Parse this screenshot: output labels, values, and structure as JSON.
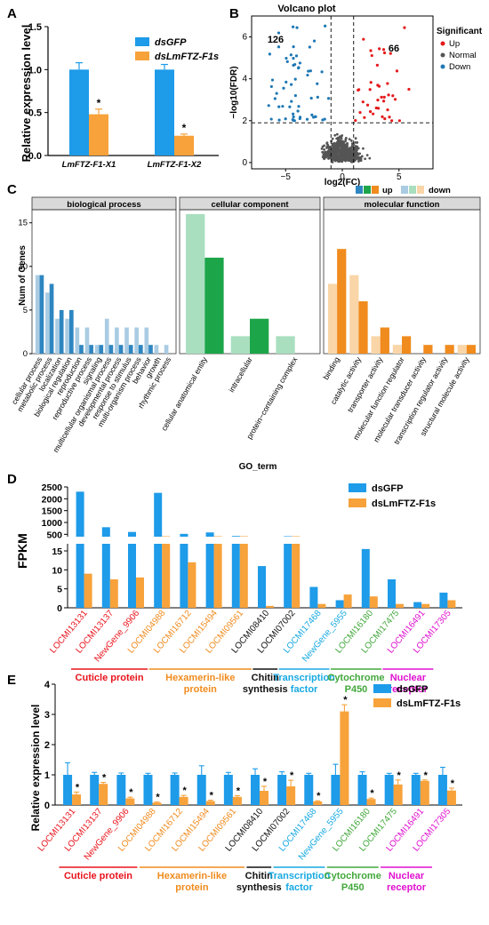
{
  "colors": {
    "blue": "#1E9BE9",
    "orange": "#F7A23B",
    "up": "#E41A1C",
    "normal": "#555555",
    "down": "#1F78B4",
    "bp_dark": "#2E86C1",
    "bp_light": "#A9CCE3",
    "cc_dark": "#1DA54A",
    "cc_light": "#A9DFBF",
    "mf_dark": "#F08B1E",
    "mf_light": "#F9D5A7",
    "red_label": "#E8141C",
    "orange_label": "#F08B1E",
    "black_label": "#111111",
    "cyan_label": "#17A9E1",
    "green_label": "#42A83B",
    "magenta_label": "#E010D0"
  },
  "panel_letters": {
    "a": "A",
    "b": "B",
    "c": "C",
    "d": "D",
    "e": "E"
  },
  "chart_data": [
    {
      "id": "A",
      "type": "bar",
      "ylabel": "Relative expression level",
      "ylim": [
        0,
        1.5
      ],
      "yticks": [
        "0.0",
        "0.5",
        "1.0",
        "1.5"
      ],
      "categories": [
        "LmFTZ-F1-X1",
        "LmFTZ-F1-X2"
      ],
      "series": [
        {
          "name": "dsGFP",
          "values": [
            1.0,
            1.0
          ],
          "errors": [
            0.08,
            0.06
          ]
        },
        {
          "name": "dsLmFTZ-F1s",
          "values": [
            0.48,
            0.23
          ],
          "errors": [
            0.06,
            0.02
          ]
        }
      ],
      "significance": [
        "*",
        "*"
      ],
      "legend": "top-right"
    },
    {
      "id": "B",
      "type": "scatter",
      "title": "Volcano plot",
      "xlabel": "log2(FC)",
      "ylabel": "−log10(FDR)",
      "xlim": [
        -8,
        8
      ],
      "ylim": [
        -0.3,
        7
      ],
      "xticks": [
        "−5",
        "0",
        "5"
      ],
      "yticks": [
        "0",
        "2",
        "4",
        "6"
      ],
      "counts": {
        "down": "126",
        "up": "66"
      },
      "legend_title": "Significant",
      "legend": [
        "Up",
        "Normal",
        "Down"
      ]
    },
    {
      "id": "C",
      "type": "bar",
      "xlabel": "GO_term",
      "ylabel": "Num of Genes",
      "ylim": [
        0,
        16.5
      ],
      "yticks": [
        "0",
        "5",
        "10",
        "15"
      ],
      "legend": {
        "up": "up",
        "down": "down"
      },
      "facets": [
        {
          "name": "biological process",
          "terms": [
            "cellular process",
            "metabolic process",
            "localization",
            "biological regulation",
            "reproduction",
            "reproductive process",
            "signaling",
            "multicellular organismal process",
            "developmental process",
            "response to stimulus",
            "multi-organism process",
            "behavior",
            "growth",
            "rhythmic process"
          ],
          "up": [
            9,
            8,
            5,
            5,
            1,
            1,
            1,
            1,
            1,
            1,
            1,
            1,
            0,
            0
          ],
          "down": [
            9,
            7,
            4,
            4,
            3,
            3,
            1,
            4,
            3,
            3,
            3,
            3,
            1,
            1
          ]
        },
        {
          "name": "cellular component",
          "terms": [
            "cellular anatomical entity",
            "intracellular",
            "protein−containing complex"
          ],
          "up": [
            11,
            4,
            0
          ],
          "down": [
            16,
            2,
            2
          ]
        },
        {
          "name": "molecular function",
          "terms": [
            "binding",
            "catalytic activity",
            "transporter activity",
            "molecular function regulator",
            "molecular transducer activity",
            "transcription regulator activity",
            "structural molecule activity"
          ],
          "up": [
            12,
            6,
            3,
            2,
            1,
            1,
            1
          ],
          "down": [
            8,
            9,
            2,
            1,
            0,
            0,
            1
          ]
        }
      ]
    },
    {
      "id": "D",
      "type": "bar",
      "ylabel": "FPKM",
      "upper_yticks": [
        "500",
        "1000",
        "1500",
        "2000",
        "2500"
      ],
      "lower_yticks": [
        "0",
        "5",
        "10",
        "15"
      ],
      "series_names": [
        "dsGFP",
        "dsLmFTZ-F1s"
      ],
      "genes": [
        {
          "id": "LOCMI13131",
          "gfp": 2300,
          "ftz": 9
        },
        {
          "id": "LOCMI13137",
          "gfp": 800,
          "ftz": 7.5
        },
        {
          "id": "NewGene_9906",
          "gfp": 600,
          "ftz": 8
        },
        {
          "id": "LOCMI04988",
          "gfp": 2250,
          "ftz": 280
        },
        {
          "id": "LOCMI16712",
          "gfp": 520,
          "ftz": 12
        },
        {
          "id": "LOCMI15494",
          "gfp": 580,
          "ftz": 20
        },
        {
          "id": "LOCMI09561",
          "gfp": 430,
          "ftz": 60
        },
        {
          "id": "LOCMI08410",
          "gfp": 11,
          "ftz": 0.5
        },
        {
          "id": "LOCMI07002",
          "gfp": 230,
          "ftz": 130
        },
        {
          "id": "LOCMI17468",
          "gfp": 5.5,
          "ftz": 1
        },
        {
          "id": "NewGene_5955",
          "gfp": 2,
          "ftz": 3.5
        },
        {
          "id": "LOCMI16180",
          "gfp": 15.5,
          "ftz": 3
        },
        {
          "id": "LOCMI17475",
          "gfp": 7.5,
          "ftz": 1
        },
        {
          "id": "LOCMI16491",
          "gfp": 1.5,
          "ftz": 1
        },
        {
          "id": "LOCMI17305",
          "gfp": 4,
          "ftz": 2
        }
      ],
      "gene_colors": [
        "red",
        "red",
        "red",
        "orange",
        "orange",
        "orange",
        "orange",
        "black",
        "black",
        "cyan",
        "cyan",
        "green",
        "green",
        "magenta",
        "magenta"
      ],
      "groups": [
        {
          "label_lines": [
            "Cuticle protein"
          ],
          "color": "red",
          "start": 0,
          "end": 3
        },
        {
          "label_lines": [
            "Hexamerin-like",
            "protein"
          ],
          "color": "orange",
          "start": 3,
          "end": 7
        },
        {
          "label_lines": [
            "Chitin",
            "synthesis"
          ],
          "color": "black",
          "start": 7,
          "end": 8
        },
        {
          "label_lines": [
            "Transcription",
            "factor"
          ],
          "color": "cyan",
          "start": 8,
          "end": 10
        },
        {
          "label_lines": [
            "Cytochrome",
            "P450"
          ],
          "color": "green",
          "start": 10,
          "end": 12
        },
        {
          "label_lines": [
            "Nuclear",
            "receptor"
          ],
          "color": "magenta",
          "start": 12,
          "end": 14
        }
      ]
    },
    {
      "id": "E",
      "type": "bar",
      "ylabel": "Relative expression level",
      "ylim": [
        0,
        4
      ],
      "yticks": [
        "0",
        "1",
        "2",
        "3",
        "4"
      ],
      "series_names": [
        "dsGFP",
        "dsLmFTZ-F1s"
      ],
      "gfp": [
        1.0,
        1.0,
        1.0,
        1.0,
        1.0,
        1.0,
        1.0,
        1.0,
        1.0,
        1.0,
        1.0,
        1.0,
        1.0,
        1.0,
        1.0
      ],
      "gfp_err": [
        0.4,
        0.08,
        0.06,
        0.05,
        0.06,
        0.3,
        0.08,
        0.2,
        0.1,
        0.05,
        0.35,
        0.1,
        0.05,
        0.05,
        0.25
      ],
      "ftz": [
        0.35,
        0.7,
        0.22,
        0.08,
        0.27,
        0.13,
        0.27,
        0.47,
        0.62,
        0.12,
        3.1,
        0.2,
        0.68,
        0.8,
        0.48
      ],
      "ftz_err": [
        0.08,
        0.05,
        0.04,
        0.02,
        0.05,
        0.03,
        0.04,
        0.15,
        0.2,
        0.02,
        0.22,
        0.03,
        0.15,
        0.03,
        0.08
      ],
      "significance": [
        "*",
        "*",
        "*",
        "*",
        "*",
        "*",
        "*",
        "*",
        "*",
        "*",
        "*",
        "*",
        "*",
        "*",
        "*"
      ]
    }
  ]
}
